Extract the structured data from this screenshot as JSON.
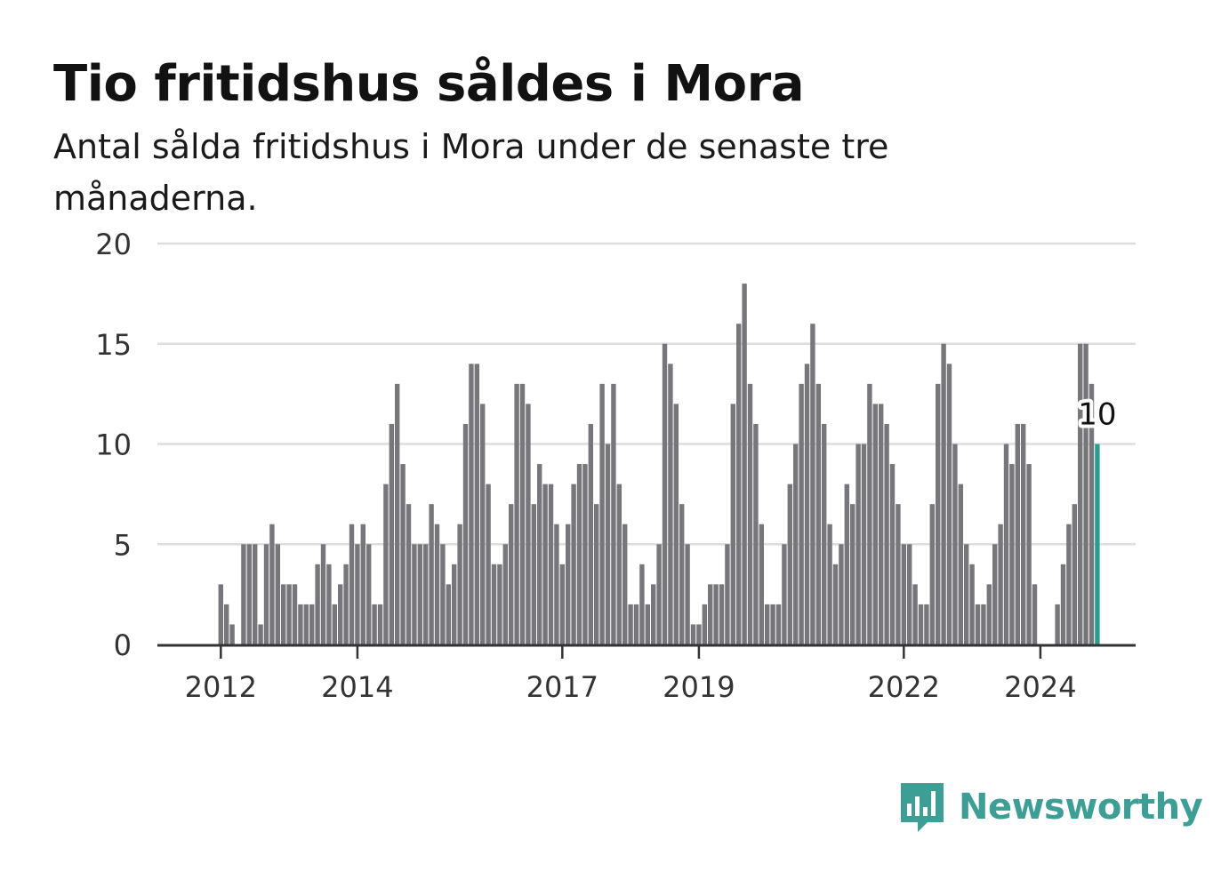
{
  "header": {
    "title": "Tio fritidshus såldes i Mora",
    "subtitle": "Antal sålda fritidshus i Mora under de senaste tre månaderna."
  },
  "chart_data": {
    "type": "bar",
    "start": "2011-10",
    "ylim": [
      0,
      20
    ],
    "yticks": [
      0,
      5,
      10,
      15,
      20
    ],
    "xticks": [
      "2012",
      "2014",
      "2017",
      "2019",
      "2022",
      "2024"
    ],
    "grid": true,
    "values": [
      0,
      0,
      0,
      3,
      2,
      1,
      0,
      5,
      5,
      5,
      1,
      5,
      6,
      5,
      3,
      3,
      3,
      2,
      2,
      2,
      4,
      5,
      4,
      2,
      3,
      4,
      6,
      5,
      6,
      5,
      2,
      2,
      8,
      11,
      13,
      9,
      7,
      5,
      5,
      5,
      7,
      6,
      5,
      3,
      4,
      6,
      11,
      14,
      14,
      12,
      8,
      4,
      4,
      5,
      7,
      13,
      13,
      12,
      7,
      9,
      8,
      8,
      6,
      4,
      6,
      8,
      9,
      9,
      11,
      7,
      13,
      10,
      13,
      8,
      6,
      2,
      2,
      4,
      2,
      3,
      5,
      15,
      14,
      12,
      7,
      5,
      1,
      1,
      2,
      3,
      3,
      3,
      5,
      12,
      16,
      18,
      13,
      11,
      6,
      2,
      2,
      2,
      5,
      8,
      10,
      13,
      14,
      16,
      13,
      11,
      6,
      4,
      5,
      8,
      7,
      10,
      10,
      13,
      12,
      12,
      11,
      9,
      7,
      5,
      5,
      3,
      2,
      2,
      7,
      13,
      15,
      14,
      10,
      8,
      5,
      4,
      2,
      2,
      3,
      5,
      6,
      10,
      9,
      11,
      11,
      9,
      3,
      0,
      0,
      0,
      2,
      4,
      6,
      7,
      15,
      15,
      13,
      10
    ],
    "highlight": {
      "value": 10,
      "label": "10"
    },
    "colors": {
      "bar": "#77767a",
      "highlight": "#2a9d8f",
      "grid": "#dddddd",
      "axis": "#333333"
    }
  },
  "branding": {
    "logo_text": "Newsworthy",
    "logo_icon": "bar-chart-speech-bubble-icon",
    "color": "#3d9e95"
  }
}
